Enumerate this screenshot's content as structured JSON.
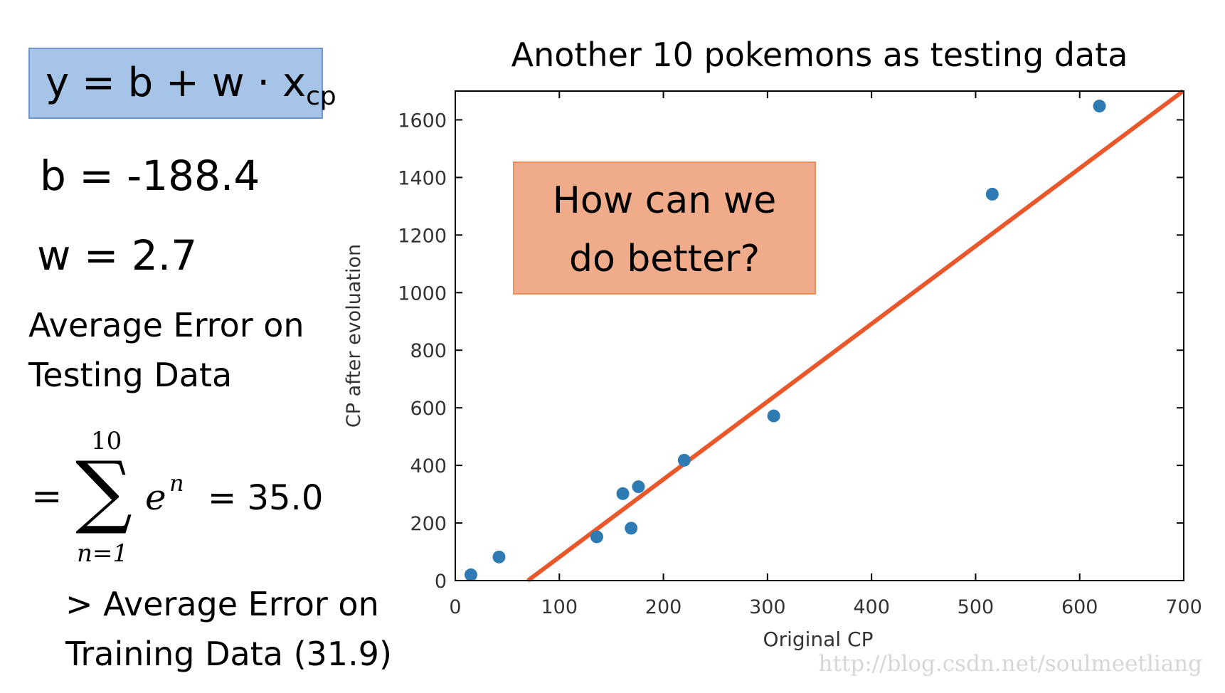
{
  "left_panel": {
    "formula": {
      "main": "y = b + w · x",
      "sub": "cp"
    },
    "b_line": "b = -188.4",
    "w_line": "w = 2.7",
    "avg_error_line1": "Average Error on",
    "avg_error_line2": "Testing Data",
    "sum": {
      "eq": "=",
      "sigma": "∑",
      "upper": "10",
      "lower": "n=1",
      "term": "e",
      "superscript": "n",
      "result": "= 35.0"
    },
    "compare_line1": "> Average Error on",
    "compare_line2": "Training Data (31.9)"
  },
  "callout": {
    "line1": "How can we",
    "line2": "do better?"
  },
  "watermark": "http://blog.csdn.net/soulmeetliang",
  "colors": {
    "points": "#2e7ab3",
    "fit_line": "#e8582b",
    "callout_fill": "#f0ac8a",
    "callout_border": "#e98f5c",
    "formula_fill": "#a6c4e8"
  },
  "chart_data": {
    "type": "scatter",
    "title": "Another 10 pokemons as testing data",
    "xlabel": "Original CP",
    "ylabel": "CP after evoluation",
    "xlim": [
      0,
      700
    ],
    "ylim": [
      0,
      1700
    ],
    "xticks": [
      0,
      100,
      200,
      300,
      400,
      500,
      600,
      700
    ],
    "yticks": [
      0,
      200,
      400,
      600,
      800,
      1000,
      1200,
      1400,
      1600
    ],
    "points": [
      {
        "x": 15,
        "y": 20
      },
      {
        "x": 42,
        "y": 82
      },
      {
        "x": 136,
        "y": 152
      },
      {
        "x": 161,
        "y": 302
      },
      {
        "x": 169,
        "y": 182
      },
      {
        "x": 176,
        "y": 326
      },
      {
        "x": 220,
        "y": 418
      },
      {
        "x": 306,
        "y": 572
      },
      {
        "x": 516,
        "y": 1342
      },
      {
        "x": 619,
        "y": 1648
      }
    ],
    "fit_line": {
      "b": -188.4,
      "w": 2.7
    },
    "grid": false,
    "legend": "none"
  }
}
